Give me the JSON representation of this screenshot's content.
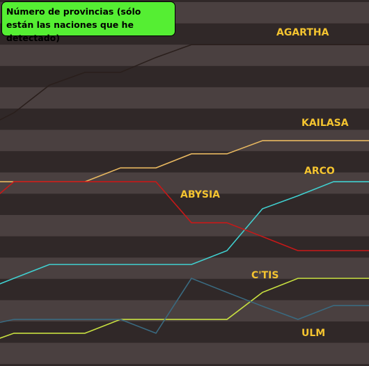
{
  "chart_data": {
    "type": "line",
    "title": "Número de provincias (sólo están las naciones que he detectado)",
    "categories": [
      null,
      null,
      null,
      null,
      null,
      null,
      null,
      null,
      null,
      null,
      null,
      null
    ],
    "ylim": [
      0,
      17.2
    ],
    "series": [
      {
        "name": "AGARTHA",
        "color": "#2a1f1c",
        "values": [
          11.05,
          11.9,
          13.2,
          13.8,
          13.8,
          14.5,
          15.1,
          15.1,
          15.1,
          15.1,
          15.1,
          15.1
        ]
      },
      {
        "name": "KAILASA",
        "color": "#e8b860",
        "values": [
          8.66,
          8.66,
          8.66,
          8.66,
          9.31,
          9.31,
          9.97,
          9.97,
          10.59,
          10.59,
          10.59,
          10.59
        ]
      },
      {
        "name": "ARCO",
        "color": "#40d0d0",
        "values": [
          3.46,
          4.12,
          4.77,
          4.77,
          4.77,
          4.77,
          4.77,
          5.42,
          7.39,
          8.0,
          8.66,
          8.66
        ]
      },
      {
        "name": "ABYSIA",
        "color": "#c81818",
        "values": [
          7.25,
          8.66,
          8.66,
          8.66,
          8.66,
          8.66,
          6.73,
          6.73,
          6.08,
          5.42,
          5.42,
          5.42
        ]
      },
      {
        "name": "C'TIS",
        "color": "#c8e040",
        "values": [
          0.95,
          1.54,
          1.54,
          1.54,
          2.19,
          2.19,
          2.19,
          2.19,
          3.46,
          4.12,
          4.12,
          4.12
        ]
      },
      {
        "name": "ULM",
        "color": "#3a6a80",
        "values": [
          1.83,
          2.19,
          2.19,
          2.19,
          2.19,
          1.54,
          4.12,
          3.46,
          2.81,
          2.19,
          2.84,
          2.84
        ]
      }
    ]
  }
}
